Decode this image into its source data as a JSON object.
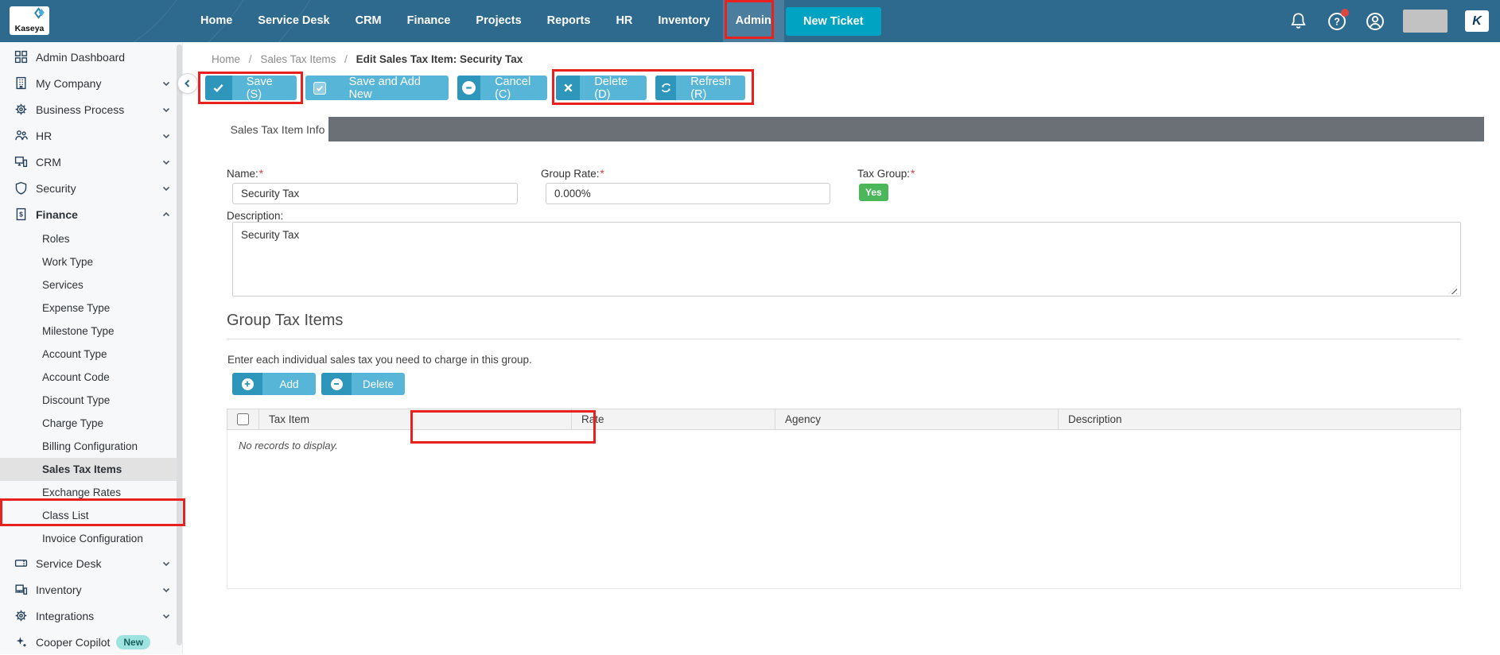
{
  "annotation_color": "#e8201e",
  "navbar": {
    "logo_text": "Kaseya",
    "items": [
      {
        "label": "Home"
      },
      {
        "label": "Service Desk"
      },
      {
        "label": "CRM"
      },
      {
        "label": "Finance"
      },
      {
        "label": "Projects"
      },
      {
        "label": "Reports"
      },
      {
        "label": "HR"
      },
      {
        "label": "Inventory"
      },
      {
        "label": "Admin",
        "active": true
      }
    ],
    "new_ticket_label": "New Ticket",
    "k_badge": "K"
  },
  "sidebar": {
    "items": [
      {
        "label": "Admin Dashboard",
        "type": "section",
        "icon": "dashboard-icon"
      },
      {
        "label": "My Company",
        "type": "section",
        "icon": "company-icon",
        "chevron": "down"
      },
      {
        "label": "Business Process",
        "type": "section",
        "icon": "gears-icon",
        "chevron": "down"
      },
      {
        "label": "HR",
        "type": "section",
        "icon": "people-icon",
        "chevron": "down"
      },
      {
        "label": "CRM",
        "type": "section",
        "icon": "devices-icon",
        "chevron": "down"
      },
      {
        "label": "Security",
        "type": "section",
        "icon": "shield-icon",
        "chevron": "down"
      },
      {
        "label": "Finance",
        "type": "section",
        "icon": "finance-doc-icon",
        "chevron": "up",
        "bold": true
      },
      {
        "label": "Roles",
        "type": "sub"
      },
      {
        "label": "Work Type",
        "type": "sub"
      },
      {
        "label": "Services",
        "type": "sub"
      },
      {
        "label": "Expense Type",
        "type": "sub"
      },
      {
        "label": "Milestone Type",
        "type": "sub"
      },
      {
        "label": "Account Type",
        "type": "sub"
      },
      {
        "label": "Account Code",
        "type": "sub"
      },
      {
        "label": "Discount Type",
        "type": "sub"
      },
      {
        "label": "Charge Type",
        "type": "sub"
      },
      {
        "label": "Billing Configuration",
        "type": "sub"
      },
      {
        "label": "Sales Tax Items",
        "type": "sub",
        "active": true
      },
      {
        "label": "Exchange Rates",
        "type": "sub"
      },
      {
        "label": "Class List",
        "type": "sub"
      },
      {
        "label": "Invoice Configuration",
        "type": "sub"
      },
      {
        "label": "Service Desk",
        "type": "section",
        "icon": "ticket-icon",
        "chevron": "down"
      },
      {
        "label": "Inventory",
        "type": "section",
        "icon": "laptop-icon",
        "chevron": "down"
      },
      {
        "label": "Integrations",
        "type": "section",
        "icon": "gears-icon",
        "chevron": "down"
      },
      {
        "label": "Cooper Copilot",
        "type": "section",
        "icon": "sparkle-icon",
        "badge": "New"
      }
    ]
  },
  "breadcrumb": {
    "separator": "/",
    "items": [
      "Home",
      "Sales Tax Items"
    ],
    "current": "Edit Sales Tax Item: Security Tax"
  },
  "toolbar": {
    "save_label": "Save (S)",
    "save_add_label": "Save and Add New",
    "cancel_label": "Cancel (C)",
    "delete_label": "Delete (D)",
    "refresh_label": "Refresh (R)"
  },
  "tabs": {
    "info_label": "Sales Tax Item Info"
  },
  "form": {
    "name": {
      "label": "Name:",
      "required": "*",
      "value": "Security Tax"
    },
    "group_rate": {
      "label": "Group Rate:",
      "required": "*",
      "value": "0.000%"
    },
    "tax_group": {
      "label": "Tax Group:",
      "required": "*",
      "value": "Yes"
    },
    "description": {
      "label": "Description:",
      "value": "Security Tax"
    }
  },
  "group_tax_items": {
    "heading": "Group Tax Items",
    "helper": "Enter each individual sales tax you need to charge in this group.",
    "add_label": "Add",
    "delete_label": "Delete",
    "table": {
      "headers": [
        "Tax Item",
        "Rate",
        "Agency",
        "Description"
      ],
      "rows": [],
      "empty_message": "No records to display."
    }
  }
}
